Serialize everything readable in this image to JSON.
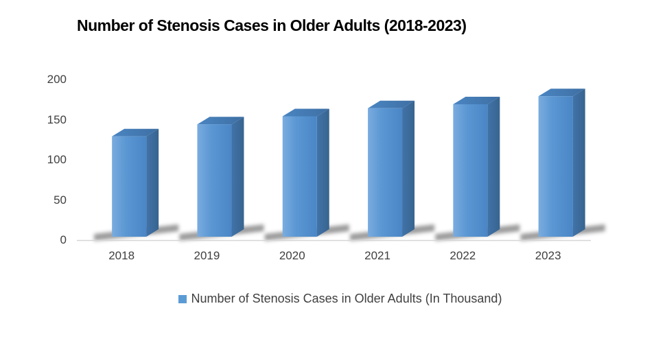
{
  "page": {
    "background": "#ffffff"
  },
  "chart_data": {
    "type": "bar",
    "variant": "3d-column",
    "title": "Number of Stenosis Cases in Older Adults (2018-2023)",
    "categories": [
      "2018",
      "2019",
      "2020",
      "2021",
      "2022",
      "2023"
    ],
    "series": [
      {
        "name": "Number of Stenosis Cases in Older Adults (In Thousand)",
        "values": [
          125,
          140,
          150,
          160,
          165,
          175
        ]
      }
    ],
    "xlabel": "",
    "ylabel": "",
    "ylim": [
      0,
      200
    ],
    "yticks": [
      0,
      50,
      100,
      150,
      200
    ],
    "grid": false,
    "legend_position": "bottom",
    "colors": {
      "bar_front_light": "#7AACDF",
      "bar_front": "#5B97D3",
      "bar_front_dark": "#4A86C6",
      "bar_top": "#4A85C2",
      "bar_top_dark": "#3E6FA3",
      "bar_side": "#4173A9",
      "bar_side_dark": "#38648F",
      "shadow": "#383838",
      "axis_line": "#D6D6D6",
      "tick_text": "#3F3F3F",
      "title_text": "#000000"
    }
  },
  "legend": {
    "swatch_color": "#5B9BD5",
    "label": "Number of Stenosis Cases in Older Adults (In Thousand)"
  }
}
